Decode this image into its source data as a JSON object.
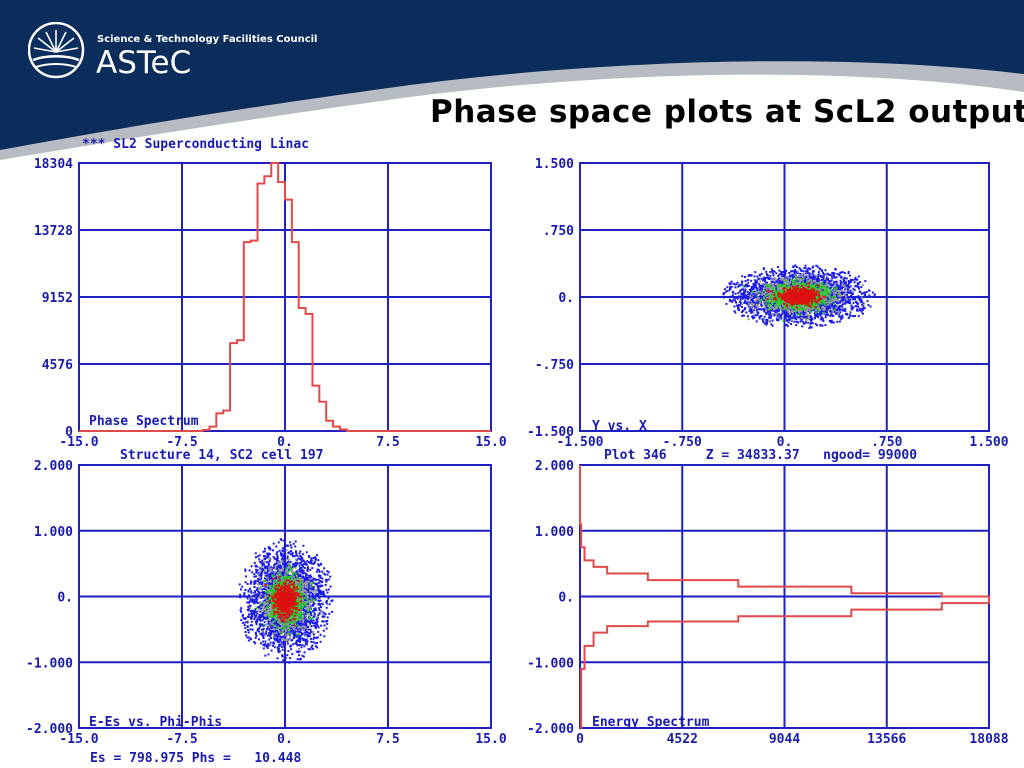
{
  "header": {
    "organization": "Science & Technology Facilities Council",
    "short_name": "ASTeC",
    "background_color": "#0b2d5c",
    "wave_color": "#b7bcc2",
    "logo_icon": "sunburst-logo-icon"
  },
  "slide": {
    "title": "Phase space plots at ScL2 output"
  },
  "colors": {
    "axis": "#1f1fc2",
    "curve": "#e04a4a",
    "density_low": "#1a1ae6",
    "density_mid": "#9a9a9a",
    "density_high": "#22cc22",
    "density_core": "#dd1111"
  },
  "chart_data": [
    {
      "id": "phase-spectrum",
      "type": "line",
      "header_text": "*** SL2 Superconducting Linac",
      "label": "Phase Spectrum",
      "subtitle": "Structure 14, SC2 cell 197",
      "x_ticks": [
        "-15.0",
        "-7.5",
        "0.",
        "7.5",
        "15.0"
      ],
      "y_ticks": [
        "0",
        "4576",
        "9152",
        "13728",
        "18304"
      ],
      "xlim": [
        -15,
        15
      ],
      "ylim": [
        0,
        18304
      ],
      "x": [
        -15,
        -6.5,
        -6,
        -5.5,
        -5,
        -4.5,
        -4,
        -3.5,
        -3,
        -2.5,
        -2,
        -1.5,
        -1,
        -0.5,
        0,
        0.5,
        1,
        1.5,
        2,
        2.5,
        3,
        3.5,
        4,
        4.5,
        5,
        15
      ],
      "y": [
        0,
        0,
        80,
        300,
        1200,
        1400,
        6000,
        6200,
        12900,
        13000,
        16900,
        17400,
        18304,
        17000,
        15800,
        12900,
        8400,
        8000,
        3100,
        2000,
        700,
        300,
        100,
        0,
        0,
        0
      ]
    },
    {
      "id": "y-vs-x",
      "type": "scatter",
      "label": "Y vs. X",
      "subtitle": "Plot 346     Z = 34833.37   ngood= 99000",
      "x_ticks": [
        "-1.500",
        "-.750",
        "0.",
        ".750",
        "1.500"
      ],
      "y_ticks": [
        "-1.500",
        "-.750",
        "0.",
        ".750",
        "1.500"
      ],
      "xlim": [
        -1.5,
        1.5
      ],
      "ylim": [
        -1.5,
        1.5
      ],
      "center": [
        0.1,
        0.02
      ],
      "radius": [
        0.56,
        0.36
      ]
    },
    {
      "id": "e-es-vs-phi-phis",
      "type": "scatter",
      "label": "E-Es vs. Phi-Phis",
      "subtitle": "Es = 798.975 Phs =   10.448",
      "x_ticks": [
        "-15.0",
        "-7.5",
        "0.",
        "7.5",
        "15.0"
      ],
      "y_ticks": [
        "-2.000",
        "-1.000",
        "0.",
        "1.000",
        "2.000"
      ],
      "xlim": [
        -15,
        15
      ],
      "ylim": [
        -2,
        2
      ],
      "center": [
        0,
        -0.05
      ],
      "radius": [
        3.5,
        0.95
      ]
    },
    {
      "id": "energy-spectrum",
      "type": "line",
      "label": "Energy Spectrum",
      "x_ticks": [
        "0",
        "4522",
        "9044",
        "13566",
        "18088"
      ],
      "y_ticks": [
        "-2.000",
        "-1.000",
        "0.",
        "1.000",
        "2.000"
      ],
      "xlim": [
        0,
        18088
      ],
      "ylim": [
        -2,
        2
      ],
      "x": [
        0,
        50,
        200,
        600,
        1200,
        3000,
        7000,
        12000,
        16000,
        18088,
        18088,
        16000,
        12000,
        7000,
        3000,
        1200,
        600,
        200,
        50,
        0
      ],
      "y": [
        2.0,
        1.1,
        0.75,
        0.55,
        0.45,
        0.35,
        0.25,
        0.15,
        0.05,
        0.0,
        0.0,
        -0.1,
        -0.2,
        -0.3,
        -0.38,
        -0.45,
        -0.55,
        -0.75,
        -1.1,
        -2.0
      ]
    }
  ]
}
